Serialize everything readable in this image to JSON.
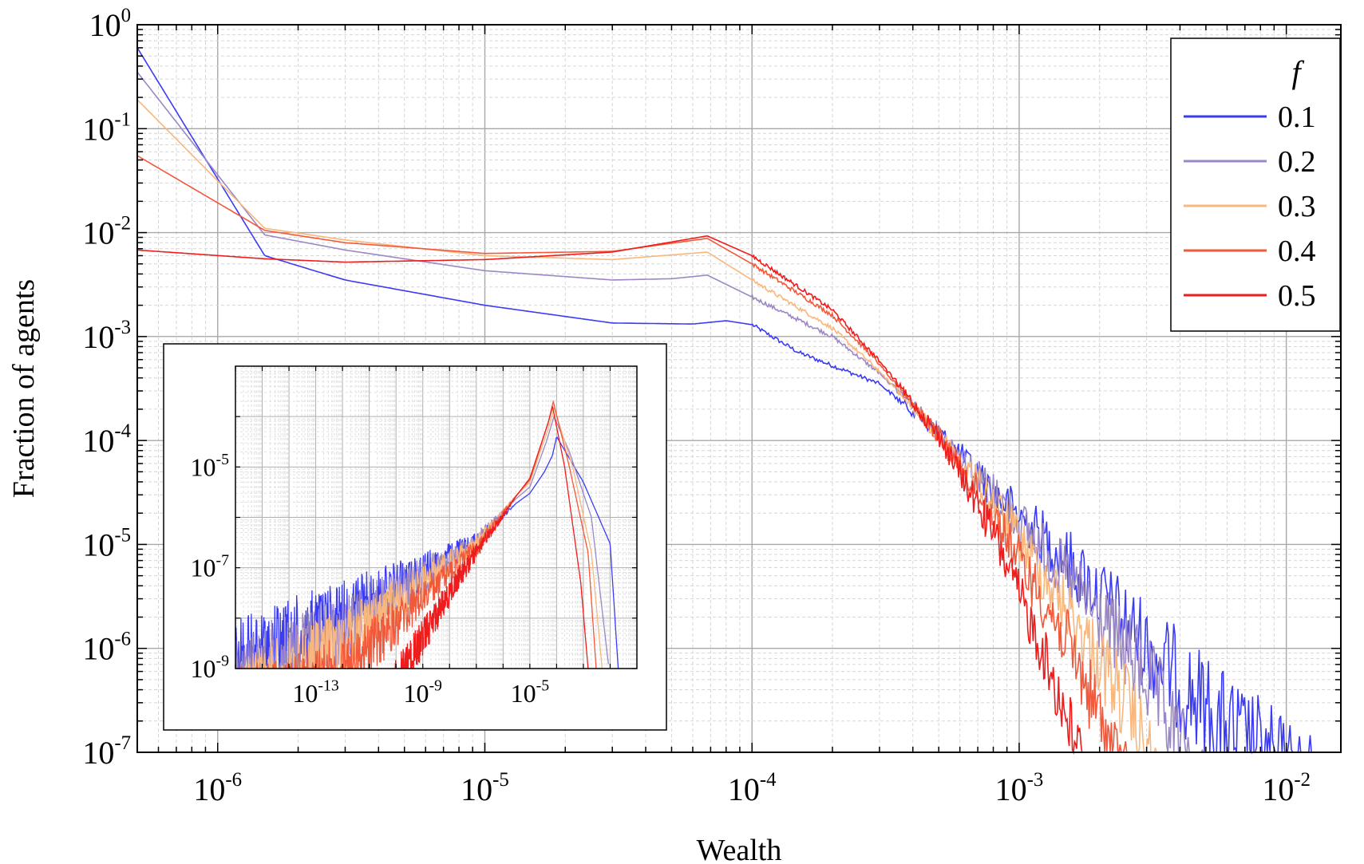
{
  "chart_data": {
    "type": "line",
    "xscale": "log",
    "yscale": "log",
    "xlabel": "Wealth",
    "ylabel": "Fraction of agents",
    "xlim": [
      5e-07,
      0.016
    ],
    "ylim": [
      1e-07,
      1
    ],
    "grid": true,
    "legend_title": "f",
    "legend_position": "top-right",
    "x_ticks": [
      {
        "exp": "-6",
        "value": 1e-06
      },
      {
        "exp": "-5",
        "value": 1e-05
      },
      {
        "exp": "-4",
        "value": 0.0001
      },
      {
        "exp": "-3",
        "value": 0.001
      },
      {
        "exp": "-2",
        "value": 0.01
      }
    ],
    "y_ticks": [
      {
        "exp": "0",
        "value": 1
      },
      {
        "exp": "-1",
        "value": 0.1
      },
      {
        "exp": "-2",
        "value": 0.01
      },
      {
        "exp": "-3",
        "value": 0.001
      },
      {
        "exp": "-4",
        "value": 0.0001
      },
      {
        "exp": "-5",
        "value": 1e-05
      },
      {
        "exp": "-6",
        "value": 1e-06
      },
      {
        "exp": "-7",
        "value": 1e-07
      }
    ],
    "series": [
      {
        "name": "0.1",
        "color": "#3b3bf4",
        "points": [
          [
            5e-07,
            0.6
          ],
          [
            1.5e-06,
            0.006
          ],
          [
            3e-06,
            0.0035
          ],
          [
            1e-05,
            0.002
          ],
          [
            3e-05,
            0.00135
          ],
          [
            6e-05,
            0.00132
          ],
          [
            8e-05,
            0.00142
          ],
          [
            0.0001,
            0.0013
          ],
          [
            0.00015,
            0.0007
          ],
          [
            0.0003,
            0.00035
          ],
          [
            0.0005,
            0.00015
          ],
          [
            0.0008,
            5e-05
          ],
          [
            0.0015,
            1.5e-05
          ],
          [
            0.003,
            3e-06
          ],
          [
            0.006,
            6e-07
          ],
          [
            0.016,
            1e-07
          ]
        ]
      },
      {
        "name": "0.2",
        "color": "#9b87c4",
        "points": [
          [
            5e-07,
            0.35
          ],
          [
            1.5e-06,
            0.0095
          ],
          [
            3e-06,
            0.0068
          ],
          [
            1e-05,
            0.0043
          ],
          [
            3e-05,
            0.0035
          ],
          [
            5e-05,
            0.0036
          ],
          [
            6.8e-05,
            0.0039
          ],
          [
            0.0001,
            0.0024
          ],
          [
            0.0002,
            0.001
          ],
          [
            0.0004,
            0.00025
          ],
          [
            0.0008,
            5e-05
          ],
          [
            0.0015,
            1e-05
          ],
          [
            0.003,
            1.5e-06
          ],
          [
            0.005,
            1e-07
          ]
        ]
      },
      {
        "name": "0.3",
        "color": "#f8b77c",
        "points": [
          [
            5e-07,
            0.19
          ],
          [
            1.5e-06,
            0.011
          ],
          [
            3e-06,
            0.0085
          ],
          [
            1e-05,
            0.006
          ],
          [
            3e-05,
            0.0055
          ],
          [
            6.8e-05,
            0.0065
          ],
          [
            0.0001,
            0.0035
          ],
          [
            0.0002,
            0.0012
          ],
          [
            0.0005,
            0.00014
          ],
          [
            0.0008,
            4e-05
          ],
          [
            0.0015,
            5e-06
          ],
          [
            0.0025,
            8e-07
          ],
          [
            0.0035,
            1e-07
          ]
        ]
      },
      {
        "name": "0.4",
        "color": "#f2583a",
        "points": [
          [
            5e-07,
            0.055
          ],
          [
            1.5e-06,
            0.0105
          ],
          [
            3e-06,
            0.008
          ],
          [
            1e-05,
            0.0063
          ],
          [
            3e-05,
            0.0066
          ],
          [
            6.8e-05,
            0.0088
          ],
          [
            0.0001,
            0.005
          ],
          [
            0.0002,
            0.0016
          ],
          [
            0.0005,
            0.00014
          ],
          [
            0.0008,
            3e-05
          ],
          [
            0.0015,
            2.5e-06
          ],
          [
            0.0022,
            3e-07
          ],
          [
            0.0026,
            1e-07
          ]
        ]
      },
      {
        "name": "0.5",
        "color": "#ee1c1c",
        "points": [
          [
            5e-07,
            0.0068
          ],
          [
            1.5e-06,
            0.0056
          ],
          [
            3e-06,
            0.0052
          ],
          [
            1e-05,
            0.0055
          ],
          [
            3e-05,
            0.0065
          ],
          [
            6.8e-05,
            0.0093
          ],
          [
            0.0001,
            0.006
          ],
          [
            0.0002,
            0.0018
          ],
          [
            0.0005,
            0.00014
          ],
          [
            0.0008,
            2e-05
          ],
          [
            0.0012,
            2e-06
          ],
          [
            0.0016,
            3e-07
          ],
          [
            0.0019,
            1e-07
          ]
        ]
      }
    ],
    "inset": {
      "type": "line",
      "xscale": "log",
      "yscale": "log",
      "xlim": [
        1e-16,
        0.1
      ],
      "ylim": [
        1e-09,
        0.001
      ],
      "x_ticks": [
        {
          "exp": "-13",
          "value": 1e-13
        },
        {
          "exp": "-9",
          "value": 1e-09
        },
        {
          "exp": "-5",
          "value": 1e-05
        }
      ],
      "y_ticks": [
        {
          "exp": "-5",
          "value": 1e-05
        },
        {
          "exp": "-7",
          "value": 1e-07
        },
        {
          "exp": "-9",
          "value": 1e-09
        }
      ],
      "series": [
        {
          "name": "0.1",
          "color": "#3b3bf4",
          "points": [
            [
              1e-16,
              1e-08
            ],
            [
              1e-13,
              4e-08
            ],
            [
              1e-10,
              1.3e-07
            ],
            [
              1e-07,
              5e-07
            ],
            [
              1e-05,
              3e-06
            ],
            [
              3.5e-05,
              8e-06
            ],
            [
              7e-05,
              1.7e-05
            ],
            [
              0.0001,
              4e-05
            ],
            [
              0.001,
              5e-06
            ],
            [
              0.01,
              3e-07
            ],
            [
              0.02,
              1e-09
            ]
          ]
        },
        {
          "name": "0.2",
          "color": "#9b87c4",
          "points": [
            [
              1e-16,
              5e-09
            ],
            [
              1e-13,
              2e-08
            ],
            [
              1e-10,
              9e-08
            ],
            [
              1e-07,
              5e-07
            ],
            [
              1e-05,
              4e-06
            ],
            [
              4e-05,
              3e-05
            ],
            [
              8e-05,
              0.0001
            ],
            [
              0.0003,
              2e-05
            ],
            [
              0.002,
              1e-06
            ],
            [
              0.009,
              1e-09
            ]
          ]
        },
        {
          "name": "0.3",
          "color": "#f8b77c",
          "points": [
            [
              1e-16,
              2e-09
            ],
            [
              1e-13,
              9e-09
            ],
            [
              1e-10,
              6e-08
            ],
            [
              1e-07,
              4.5e-07
            ],
            [
              1e-05,
              5e-06
            ],
            [
              5e-05,
              6e-05
            ],
            [
              8e-05,
              0.00015
            ],
            [
              0.0004,
              1e-05
            ],
            [
              0.002,
              2e-07
            ],
            [
              0.005,
              1e-09
            ]
          ]
        },
        {
          "name": "0.4",
          "color": "#f2583a",
          "points": [
            [
              1e-16,
              1e-09
            ],
            [
              1e-13,
              3e-09
            ],
            [
              1e-11,
              1e-08
            ],
            [
              1e-09,
              6e-08
            ],
            [
              1e-07,
              3.5e-07
            ],
            [
              1e-05,
              5.5e-06
            ],
            [
              5e-05,
              8e-05
            ],
            [
              7.5e-05,
              0.0002
            ],
            [
              0.0003,
              1e-05
            ],
            [
              0.0015,
              2e-07
            ],
            [
              0.003,
              1e-09
            ]
          ]
        },
        {
          "name": "0.5",
          "color": "#ee1c1c",
          "points": [
            [
              6e-11,
              1e-09
            ],
            [
              1e-09,
              1e-08
            ],
            [
              1e-08,
              6e-08
            ],
            [
              1e-07,
              3e-07
            ],
            [
              1e-06,
              1.2e-06
            ],
            [
              1e-05,
              6e-06
            ],
            [
              5e-05,
              8e-05
            ],
            [
              7e-05,
              0.00016
            ],
            [
              0.0002,
              1e-05
            ],
            [
              0.0008,
              5e-08
            ],
            [
              0.0015,
              1e-09
            ]
          ]
        }
      ]
    }
  }
}
